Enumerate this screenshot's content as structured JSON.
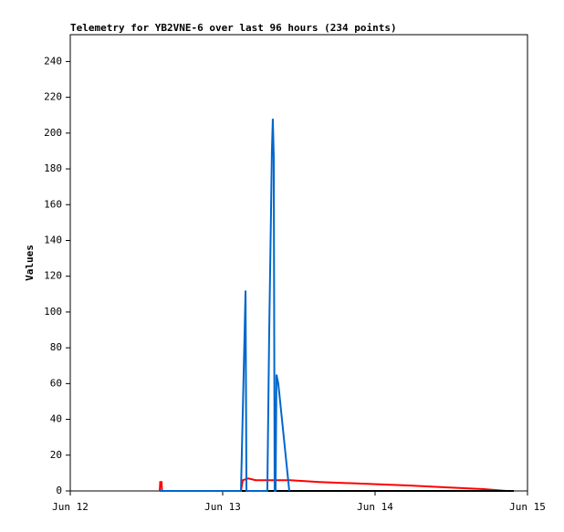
{
  "chart_data": {
    "type": "line",
    "title": "Telemetry for YB2VNE-6 over last 96 hours (234 points)",
    "y_label": "Values",
    "xlim": [
      0,
      3
    ],
    "ylim": [
      0,
      255
    ],
    "xticks": [
      {
        "value": 0,
        "label": "Jun 12"
      },
      {
        "value": 1,
        "label": "Jun 13"
      },
      {
        "value": 2,
        "label": "Jun 14"
      },
      {
        "value": 3,
        "label": "Jun 15"
      }
    ],
    "yticks": [
      0,
      20,
      40,
      60,
      80,
      100,
      120,
      140,
      160,
      180,
      200,
      220,
      240
    ],
    "series": [
      {
        "color": "#ff0000",
        "x": [
          0.587,
          0.59,
          0.599,
          0.602,
          1.12,
          1.132,
          1.168,
          1.216,
          1.443,
          1.635,
          1.934,
          2.234,
          2.473,
          2.713,
          2.862
        ],
        "values": [
          0,
          5,
          5,
          0,
          0,
          6,
          7,
          6,
          6,
          5,
          4,
          3,
          2,
          1,
          0
        ]
      },
      {
        "color": "#000000",
        "x": [
          0.587,
          2.91
        ],
        "values": [
          0,
          0
        ]
      },
      {
        "color": "#0066cc",
        "x": [
          0.587,
          1.12,
          1.138,
          1.15,
          1.153,
          1.156,
          1.159,
          1.293,
          1.305,
          1.317,
          1.323,
          1.329,
          1.335,
          1.341,
          1.347,
          1.353,
          1.365,
          1.437
        ],
        "values": [
          0,
          0,
          67,
          112,
          55,
          0,
          0,
          0,
          87,
          155,
          190,
          208,
          187,
          0,
          0,
          65,
          60,
          0
        ]
      }
    ]
  }
}
